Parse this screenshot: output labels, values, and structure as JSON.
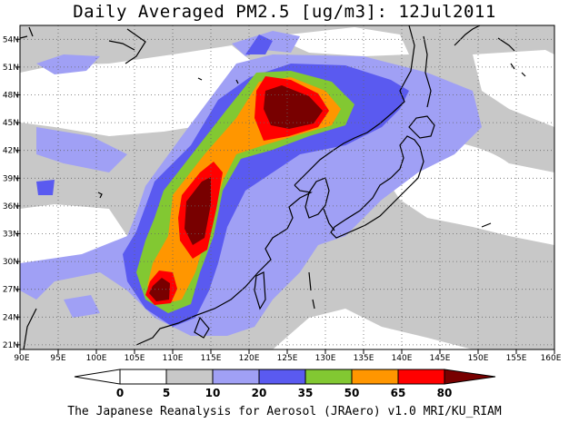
{
  "title": "Daily Averaged PM2.5 [ug/m3]: 12Jul2011",
  "credit": "The Japanese Reanalysis for Aerosol (JRAero) v1.0 MRI/KU_RIAM",
  "map": {
    "lon_range": [
      90,
      160
    ],
    "lat_range": [
      20,
      55
    ],
    "lon_ticks": [
      "90E",
      "95E",
      "100E",
      "105E",
      "110E",
      "115E",
      "120E",
      "125E",
      "130E",
      "135E",
      "140E",
      "145E",
      "150E",
      "155E",
      "160E"
    ],
    "lat_ticks": [
      "21N",
      "24N",
      "27N",
      "30N",
      "33N",
      "36N",
      "39N",
      "42N",
      "45N",
      "48N",
      "51N",
      "54N"
    ],
    "grid": "dotted"
  },
  "colorbar": {
    "labels": [
      "0",
      "5",
      "10",
      "20",
      "35",
      "50",
      "65",
      "80"
    ],
    "colors": [
      "#ffffff",
      "#c8c8c8",
      "#a0a0f5",
      "#5a5af0",
      "#82c832",
      "#ff9600",
      "#ff0000",
      "#780000"
    ]
  }
}
